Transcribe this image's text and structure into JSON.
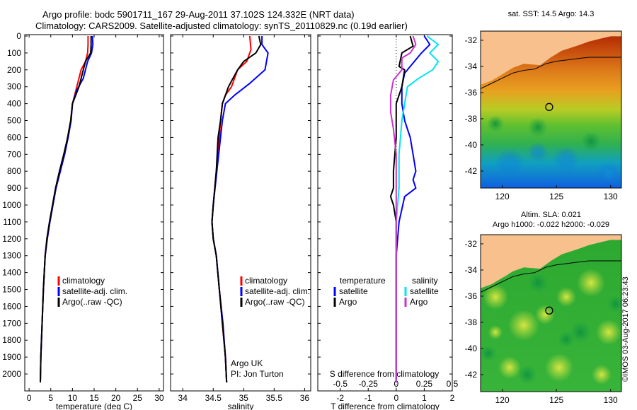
{
  "header": {
    "line1": "Argo profile: bodc 5901711_167 29-Aug-2011 37.102S 124.332E (NRT data)",
    "line2": "Climatology: CARS2009. Satellite-adjusted climatology: synTS_20110829.nc (0.19d earlier)"
  },
  "stamp": "©IMOS 03-Aug-2017 06:23:43",
  "colors": {
    "climatology": "#ff0000",
    "satellite": "#0000ff",
    "argo": "#000000",
    "salinity_satellite": "#00e5ee",
    "salinity_argo": "#cc33cc",
    "land": "#f7c08d"
  },
  "chart_data": [
    {
      "type": "line",
      "id": "temperature",
      "xlabel": "temperature (deg C)",
      "xlim": [
        -1,
        31
      ],
      "ylim": [
        2050,
        0
      ],
      "xticks": [
        0,
        5,
        10,
        15,
        20,
        25,
        30
      ],
      "yticks": [
        0,
        100,
        200,
        300,
        400,
        500,
        600,
        700,
        800,
        900,
        1000,
        1100,
        1200,
        1300,
        1400,
        1500,
        1600,
        1700,
        1800,
        1900,
        2000
      ],
      "legend": [
        "climatology",
        "satellite-adj. clim.",
        "Argo(..raw -QC)"
      ],
      "series": [
        {
          "name": "climatology",
          "color": "#ff0000",
          "points": [
            [
              13.6,
              0
            ],
            [
              13.6,
              50
            ],
            [
              13.5,
              100
            ],
            [
              13.0,
              150
            ],
            [
              12.0,
              200
            ],
            [
              11.0,
              300
            ],
            [
              10.0,
              400
            ],
            [
              9.6,
              500
            ],
            [
              8.9,
              600
            ],
            [
              8.2,
              700
            ],
            [
              7.2,
              800
            ],
            [
              6.2,
              900
            ],
            [
              5.5,
              1000
            ],
            [
              4.8,
              1100
            ],
            [
              4.2,
              1200
            ],
            [
              3.7,
              1300
            ],
            [
              3.3,
              1500
            ],
            [
              3.0,
              1700
            ],
            [
              2.7,
              1900
            ],
            [
              2.6,
              2050
            ]
          ]
        },
        {
          "name": "satellite-adj. clim.",
          "color": "#0000ff",
          "points": [
            [
              14.6,
              0
            ],
            [
              14.7,
              50
            ],
            [
              14.4,
              100
            ],
            [
              13.5,
              150
            ],
            [
              12.5,
              250
            ],
            [
              11.0,
              320
            ],
            [
              10.0,
              400
            ],
            [
              9.7,
              500
            ],
            [
              9.0,
              600
            ],
            [
              8.2,
              700
            ],
            [
              7.2,
              800
            ],
            [
              6.2,
              900
            ],
            [
              5.5,
              1000
            ],
            [
              4.8,
              1100
            ],
            [
              4.2,
              1200
            ],
            [
              3.7,
              1300
            ],
            [
              3.3,
              1500
            ],
            [
              3.0,
              1700
            ],
            [
              2.7,
              1900
            ],
            [
              2.6,
              2050
            ]
          ]
        },
        {
          "name": "Argo(..raw -QC)",
          "color": "#000000",
          "points": [
            [
              14.3,
              0
            ],
            [
              14.3,
              50
            ],
            [
              14.2,
              100
            ],
            [
              13.0,
              150
            ],
            [
              12.5,
              200
            ],
            [
              11.5,
              300
            ],
            [
              10.0,
              400
            ],
            [
              9.6,
              500
            ],
            [
              8.9,
              600
            ],
            [
              8.0,
              700
            ],
            [
              7.0,
              800
            ],
            [
              6.1,
              900
            ],
            [
              5.4,
              1000
            ],
            [
              4.7,
              1100
            ],
            [
              4.1,
              1200
            ],
            [
              3.7,
              1300
            ],
            [
              3.3,
              1500
            ],
            [
              3.0,
              1700
            ],
            [
              2.7,
              1900
            ],
            [
              2.6,
              2050
            ]
          ]
        }
      ]
    },
    {
      "type": "line",
      "id": "salinity",
      "xlabel": "salinity",
      "xlim": [
        33.8,
        36.1
      ],
      "ylim": [
        2050,
        0
      ],
      "xticks": [
        34,
        34.5,
        35,
        35.5,
        36
      ],
      "xticklabels": [
        "34",
        "34.5",
        "35",
        "35.5",
        "36"
      ],
      "legend": [
        "climatology",
        "satellite-adj. clim.",
        "Argo(..raw -QC)"
      ],
      "annotation": [
        "Argo UK",
        "PI: Jon Turton"
      ],
      "series": [
        {
          "name": "climatology",
          "color": "#ff0000",
          "points": [
            [
              35.1,
              0
            ],
            [
              35.12,
              80
            ],
            [
              35.05,
              150
            ],
            [
              34.9,
              200
            ],
            [
              34.8,
              300
            ],
            [
              34.7,
              350
            ],
            [
              34.65,
              400
            ],
            [
              34.62,
              500
            ],
            [
              34.6,
              600
            ],
            [
              34.55,
              800
            ],
            [
              34.5,
              1000
            ],
            [
              34.48,
              1100
            ],
            [
              34.5,
              1200
            ],
            [
              34.55,
              1300
            ],
            [
              34.6,
              1500
            ],
            [
              34.65,
              1700
            ],
            [
              34.7,
              1900
            ],
            [
              34.72,
              2050
            ]
          ]
        },
        {
          "name": "satellite-adj. clim.",
          "color": "#0000ff",
          "points": [
            [
              35.3,
              0
            ],
            [
              35.3,
              50
            ],
            [
              35.4,
              100
            ],
            [
              35.35,
              200
            ],
            [
              35.1,
              280
            ],
            [
              34.85,
              350
            ],
            [
              34.7,
              400
            ],
            [
              34.65,
              500
            ],
            [
              34.62,
              600
            ],
            [
              34.56,
              800
            ],
            [
              34.5,
              1000
            ],
            [
              34.48,
              1100
            ],
            [
              34.5,
              1200
            ],
            [
              34.55,
              1300
            ],
            [
              34.6,
              1500
            ],
            [
              34.66,
              1700
            ],
            [
              34.7,
              1900
            ],
            [
              34.72,
              2050
            ]
          ]
        },
        {
          "name": "Argo(..raw -QC)",
          "color": "#000000",
          "points": [
            [
              35.25,
              0
            ],
            [
              35.28,
              50
            ],
            [
              35.2,
              100
            ],
            [
              35.0,
              150
            ],
            [
              34.9,
              200
            ],
            [
              34.75,
              300
            ],
            [
              34.65,
              400
            ],
            [
              34.62,
              500
            ],
            [
              34.58,
              600
            ],
            [
              34.55,
              800
            ],
            [
              34.5,
              1000
            ],
            [
              34.48,
              1100
            ],
            [
              34.5,
              1200
            ],
            [
              34.55,
              1300
            ],
            [
              34.6,
              1500
            ],
            [
              34.65,
              1700
            ],
            [
              34.7,
              1900
            ],
            [
              34.72,
              2050
            ]
          ]
        }
      ]
    },
    {
      "type": "line",
      "id": "difference",
      "xlabel": "T difference from climatology",
      "xlabel2": "S difference from climatology",
      "xlim": [
        -2.8,
        2.0
      ],
      "ylim": [
        2050,
        0
      ],
      "xticks": [
        -2,
        -1,
        0,
        1,
        2
      ],
      "xticklabels": [
        "-2",
        "-1",
        "0",
        "1",
        "2"
      ],
      "s_ticks": [
        -0.5,
        -0.25,
        0,
        0.25,
        0.5
      ],
      "s_ticklabels": [
        "-0.5",
        "-0.25",
        "0",
        "0.25",
        "0.5"
      ],
      "s_scale": 4,
      "legend": [
        {
          "group": "temperature",
          "items": [
            "satellite",
            "Argo"
          ]
        },
        {
          "group": "salinity",
          "items": [
            "satellite",
            "Argo"
          ]
        }
      ],
      "series": [
        {
          "name": "temperature satellite",
          "color": "#0000ff",
          "points": [
            [
              1.0,
              0
            ],
            [
              1.2,
              50
            ],
            [
              0.9,
              100
            ],
            [
              0.5,
              180
            ],
            [
              0.3,
              220
            ],
            [
              0.2,
              300
            ],
            [
              0.2,
              400
            ],
            [
              0.3,
              500
            ],
            [
              0.5,
              600
            ],
            [
              0.6,
              700
            ],
            [
              0.7,
              800
            ],
            [
              0.6,
              850
            ],
            [
              0.7,
              900
            ],
            [
              0.3,
              950
            ],
            [
              0.1,
              1100
            ],
            [
              0,
              1300
            ],
            [
              0,
              1500
            ],
            [
              0,
              2050
            ]
          ]
        },
        {
          "name": "temperature Argo",
          "color": "#000000",
          "points": [
            [
              0.5,
              0
            ],
            [
              0.6,
              60
            ],
            [
              0.2,
              100
            ],
            [
              0.1,
              180
            ],
            [
              0.3,
              200
            ],
            [
              0.2,
              300
            ],
            [
              0,
              400
            ],
            [
              0,
              600
            ],
            [
              -0.1,
              800
            ],
            [
              -0.1,
              900
            ],
            [
              -0.2,
              950
            ],
            [
              -0.1,
              1000
            ],
            [
              0,
              1100
            ],
            [
              0,
              2050
            ]
          ]
        },
        {
          "name": "salinity satellite",
          "color": "#00e5ee",
          "points": [
            [
              1.1,
              0
            ],
            [
              1.5,
              50
            ],
            [
              1.2,
              100
            ],
            [
              1.5,
              150
            ],
            [
              1.3,
              200
            ],
            [
              0.8,
              250
            ],
            [
              0.4,
              300
            ],
            [
              0.3,
              400
            ],
            [
              0.2,
              500
            ],
            [
              0.1,
              700
            ],
            [
              0.1,
              900
            ],
            [
              0,
              1100
            ],
            [
              0,
              1300
            ],
            [
              0,
              2050
            ]
          ]
        },
        {
          "name": "salinity Argo",
          "color": "#cc33cc",
          "points": [
            [
              0.6,
              0
            ],
            [
              0.7,
              50
            ],
            [
              0.5,
              100
            ],
            [
              0.2,
              130
            ],
            [
              0.2,
              200
            ],
            [
              -0.1,
              260
            ],
            [
              -0.2,
              350
            ],
            [
              -0.2,
              450
            ],
            [
              -0.1,
              550
            ],
            [
              0,
              700
            ],
            [
              0,
              900
            ],
            [
              0,
              1100
            ],
            [
              0,
              1300
            ],
            [
              0,
              2050
            ]
          ]
        }
      ]
    },
    {
      "type": "heatmap",
      "id": "sst-map",
      "title": "sat. SST: 14.5  Argo: 14.3",
      "xlim": [
        118,
        131
      ],
      "ylim": [
        -43.3,
        -31.3
      ],
      "xticks": [
        120,
        125,
        130
      ],
      "yticks": [
        -32,
        -34,
        -36,
        -38,
        -40,
        -42
      ],
      "marker": [
        124.332,
        -37.102
      ]
    },
    {
      "type": "heatmap",
      "id": "sla-map",
      "title": "Altim. SLA: 0.021",
      "subtitle": "Argo h1000: -0.022 h2000: -0.029",
      "xlim": [
        118,
        131
      ],
      "ylim": [
        -43.3,
        -31.3
      ],
      "xticks": [
        120,
        125,
        130
      ],
      "yticks": [
        -32,
        -34,
        -36,
        -38,
        -40,
        -42
      ],
      "marker": [
        124.332,
        -37.102
      ]
    }
  ]
}
